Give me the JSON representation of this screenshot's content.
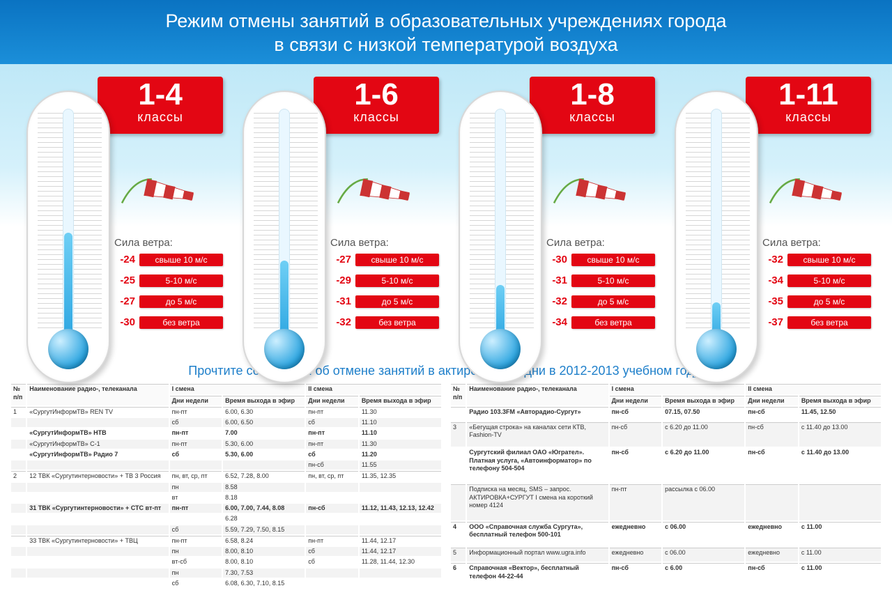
{
  "header": {
    "line1": "Режим отмены занятий в образовательных учреждениях города",
    "line2": "в связи с низкой температурой воздуха"
  },
  "colors": {
    "header_bg_top": "#0a73c2",
    "header_bg_bottom": "#1b8fd9",
    "red": "#e30613",
    "mercury_top": "#6fcff5",
    "mercury_bottom": "#2aa4e0"
  },
  "wind_title": "Сила ветра:",
  "wind_labels": [
    "свыше 10 м/с",
    "5-10 м/с",
    "до 5 м/с",
    "без ветра"
  ],
  "panels": [
    {
      "range": "1-4",
      "klass": "классы",
      "temps": [
        "-24",
        "-25",
        "-27",
        "-30"
      ],
      "mercury_h": 160
    },
    {
      "range": "1-6",
      "klass": "классы",
      "temps": [
        "-27",
        "-29",
        "-31",
        "-32"
      ],
      "mercury_h": 120
    },
    {
      "range": "1-8",
      "klass": "классы",
      "temps": [
        "-30",
        "-31",
        "-32",
        "-34"
      ],
      "mercury_h": 85
    },
    {
      "range": "1-11",
      "klass": "классы",
      "temps": [
        "-32",
        "-34",
        "-35",
        "-37"
      ],
      "mercury_h": 60
    }
  ],
  "subhead": "Прочтите сообщения об отмене занятий в актированные дни в 2012-2013 учебном году:",
  "thead": {
    "num": "№ п/п",
    "name": "Наименование радио-, телеканала",
    "shift1": "I смена",
    "shift2": "II смена",
    "days": "Дни недели",
    "time": "Время выхода в эфир"
  },
  "left_rows": [
    {
      "n": "1",
      "name": "«СургутИнформТВ» REN TV",
      "d1": "пн-пт",
      "t1": "6.00, 6.30",
      "d2": "пн-пт",
      "t2": "11.30",
      "sep": true
    },
    {
      "n": "",
      "name": "",
      "d1": "сб",
      "t1": "6.00, 6.50",
      "d2": "сб",
      "t2": "11.10"
    },
    {
      "n": "",
      "name": "«СургутИнформТВ» НТВ",
      "d1": "пн-пт",
      "t1": "7.00",
      "d2": "пн-пт",
      "t2": "11.10",
      "bold": true
    },
    {
      "n": "",
      "name": "«СургутИнформТВ» С-1",
      "d1": "пн-пт",
      "t1": "5.30, 6.00",
      "d2": "пн-пт",
      "t2": "11.30"
    },
    {
      "n": "",
      "name": "«СургутИнформТВ» Радио 7",
      "d1": "сб",
      "t1": "5.30, 6.00",
      "d2": "сб",
      "t2": "11.20",
      "bold": true
    },
    {
      "n": "",
      "name": "",
      "d1": "",
      "t1": "",
      "d2": "пн-сб",
      "t2": "11.55"
    },
    {
      "n": "2",
      "name": "12 ТВК «Сургутинтерновости» + ТВ 3 Россия",
      "d1": "пн, вт, ср, пт",
      "t1": "6.52, 7.28, 8.00",
      "d2": "пн, вт, ср, пт",
      "t2": "11.35, 12.35",
      "sep": true
    },
    {
      "n": "",
      "name": "",
      "d1": "пн",
      "t1": "8.58",
      "d2": "",
      "t2": ""
    },
    {
      "n": "",
      "name": "",
      "d1": "вт",
      "t1": "8.18",
      "d2": "",
      "t2": ""
    },
    {
      "n": "",
      "name": "31 ТВК «Сургутинтерновости» + СТС  вт-пт",
      "d1": "пн-пт",
      "t1": "6.00, 7.00, 7.44, 8.08",
      "d2": "пн-сб",
      "t2": "11.12, 11.43, 12.13, 12.42",
      "bold": true
    },
    {
      "n": "",
      "name": "",
      "d1": "",
      "t1": "6.28",
      "d2": "",
      "t2": ""
    },
    {
      "n": "",
      "name": "",
      "d1": "сб",
      "t1": "5.59, 7.29, 7.50, 8.15",
      "d2": "",
      "t2": ""
    },
    {
      "n": "",
      "name": "33 ТВК «Сургутинтерновости» + ТВЦ",
      "d1": "пн-пт",
      "t1": "6.58, 8.24",
      "d2": "пн-пт",
      "t2": "11.44, 12.17",
      "sep": true
    },
    {
      "n": "",
      "name": "",
      "d1": "пн",
      "t1": "8.00, 8.10",
      "d2": "сб",
      "t2": "11.44, 12.17"
    },
    {
      "n": "",
      "name": "",
      "d1": "вт-сб",
      "t1": "8.00, 8.10",
      "d2": "сб",
      "t2": "11.28, 11.44, 12.30"
    },
    {
      "n": "",
      "name": "",
      "d1": "пн",
      "t1": "7.30, 7.53",
      "d2": "",
      "t2": ""
    },
    {
      "n": "",
      "name": "",
      "d1": "сб",
      "t1": "6.08, 6.30, 7.10, 8.15",
      "d2": "",
      "t2": ""
    }
  ],
  "right_rows": [
    {
      "n": "",
      "name": "Радио 103.3FM «Авторадио-Сургут»",
      "d1": "пн-сб",
      "t1": "07.15, 07.50",
      "d2": "пн-сб",
      "t2": "11.45, 12.50",
      "bold": true,
      "sep": true
    },
    {
      "n": "3",
      "name": "«Бегущая строка» на каналах сети КТВ, Fashion-TV",
      "d1": "пн-сб",
      "t1": "с 6.20 до 11.00",
      "d2": "пн-сб",
      "t2": "с 11.40 до 13.00",
      "sep": true
    },
    {
      "n": "",
      "name": "Сургутский филиал ОАО «Югрател». Платная услуга, «Автоинформатор» по телефону 504-504",
      "d1": "пн-сб",
      "t1": "с 6.20 до 11.00",
      "d2": "пн-сб",
      "t2": "с 11.40 до 13.00",
      "bold": true
    },
    {
      "n": "",
      "name": "Подписка на месяц, SMS – запрос. АКТИРОВКА+СУРГУТ I смена на короткий номер 4124",
      "d1": "пн-пт",
      "t1": "рассылка с 06.00",
      "d2": "",
      "t2": "",
      "sep": true
    },
    {
      "n": "4",
      "name": "ООО «Справочная служба Сургута», бесплатный телефон 500-101",
      "d1": "ежедневно",
      "t1": "с 06.00",
      "d2": "ежедневно",
      "t2": "с 11.00",
      "bold": true,
      "sep": true
    },
    {
      "n": "5",
      "name": "Информационный портал www.ugra.info",
      "d1": "ежедневно",
      "t1": "с 06.00",
      "d2": "ежедневно",
      "t2": "с 11.00",
      "sep": true
    },
    {
      "n": "6",
      "name": "Справочная «Вектор», бесплатный телефон 44-22-44",
      "d1": "пн-сб",
      "t1": "с 6.00",
      "d2": "пн-сб",
      "t2": "с 11.00",
      "bold": true,
      "sep": true
    }
  ]
}
